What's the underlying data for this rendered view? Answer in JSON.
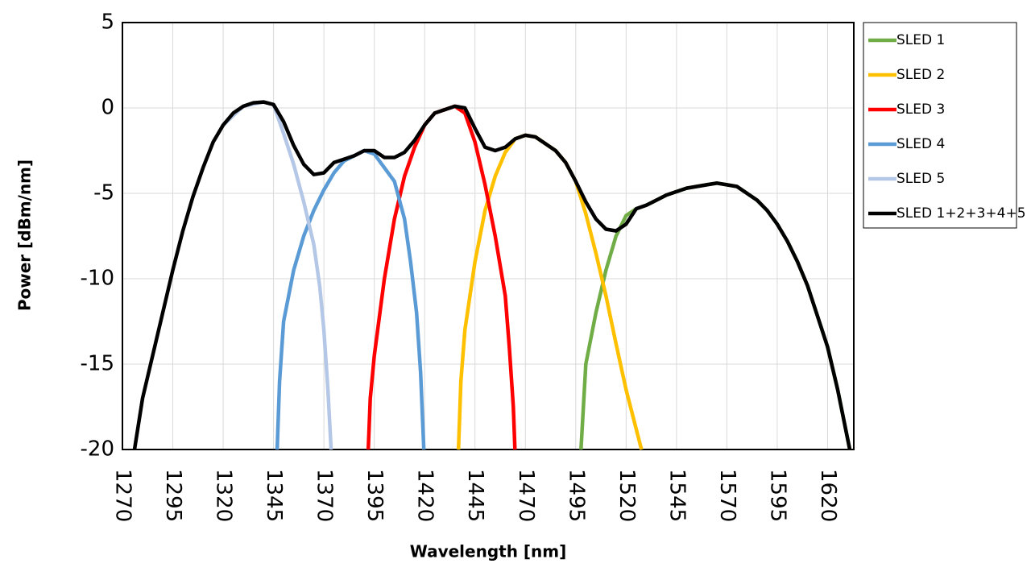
{
  "chart_data": {
    "type": "line",
    "x_label": "Wavelength [nm]",
    "y_label": "Power [dBm/nm]",
    "xlim": [
      1270,
      1633
    ],
    "ylim": [
      -20,
      5
    ],
    "xticks": [
      1270,
      1295,
      1320,
      1345,
      1370,
      1395,
      1420,
      1445,
      1470,
      1495,
      1520,
      1545,
      1570,
      1595,
      1620
    ],
    "yticks": [
      5,
      0,
      -5,
      -10,
      -15,
      -20
    ],
    "grid": true,
    "legend": "right",
    "series": [
      {
        "name": "SLED 1",
        "color": "#70ad47",
        "x": [
          1497.6,
          1500,
          1505,
          1510,
          1515,
          1520,
          1525,
          1530,
          1535,
          1540,
          1545,
          1550,
          1555,
          1560,
          1565,
          1570,
          1575,
          1580,
          1585,
          1590,
          1595,
          1600,
          1605,
          1610,
          1615,
          1620,
          1625,
          1631
        ],
        "values": [
          -20,
          -15,
          -12,
          -9.5,
          -7.5,
          -6.3,
          -5.9,
          -5.7,
          -5.4,
          -5.1,
          -4.9,
          -4.7,
          -4.6,
          -4.5,
          -4.4,
          -4.5,
          -4.6,
          -5.0,
          -5.4,
          -6.0,
          -6.8,
          -7.8,
          -9.0,
          -10.4,
          -12.2,
          -14.0,
          -16.5,
          -20
        ]
      },
      {
        "name": "SLED 2",
        "color": "#ffc000",
        "x": [
          1436.8,
          1438,
          1440,
          1445,
          1450,
          1455,
          1460,
          1465,
          1470,
          1475,
          1480,
          1485,
          1490,
          1495,
          1500,
          1505,
          1510,
          1515,
          1520,
          1527.6
        ],
        "values": [
          -20,
          -16,
          -13,
          -9,
          -6,
          -4,
          -2.6,
          -1.8,
          -1.6,
          -1.7,
          -2.1,
          -2.5,
          -3.2,
          -4.3,
          -6.2,
          -8.5,
          -11,
          -13.8,
          -16.5,
          -20
        ]
      },
      {
        "name": "SLED 3",
        "color": "#ff0000",
        "x": [
          1392,
          1393,
          1395,
          1400,
          1405,
          1410,
          1415,
          1420,
          1425,
          1430,
          1435,
          1440,
          1445,
          1450,
          1455,
          1460,
          1462,
          1464,
          1464.8
        ],
        "values": [
          -20,
          -17,
          -14.5,
          -10,
          -6.5,
          -4,
          -2.3,
          -1,
          -0.3,
          -0.1,
          0.1,
          -0.3,
          -2,
          -4.5,
          -7.5,
          -11,
          -14,
          -17.5,
          -20
        ]
      },
      {
        "name": "SLED 4",
        "color": "#5b9bd5",
        "x": [
          1346.8,
          1348,
          1350,
          1355,
          1360,
          1365,
          1370,
          1375,
          1380,
          1385,
          1390,
          1395,
          1400,
          1405,
          1410,
          1413,
          1416,
          1418,
          1419.6
        ],
        "values": [
          -20,
          -16,
          -12.5,
          -9.5,
          -7.5,
          -6,
          -4.8,
          -3.8,
          -3.1,
          -2.8,
          -2.5,
          -2.7,
          -3.5,
          -4.3,
          -6.5,
          -9,
          -12,
          -15.5,
          -20
        ]
      },
      {
        "name": "SLED 5",
        "color": "#b4c7e7",
        "x": [
          1320,
          1330,
          1340,
          1345,
          1350,
          1355,
          1360,
          1365,
          1368,
          1370,
          1372,
          1373.6
        ],
        "values": [
          -1,
          0.1,
          0.35,
          0.2,
          -1.5,
          -3.3,
          -5.5,
          -8,
          -10.5,
          -13,
          -16.5,
          -20
        ]
      },
      {
        "name": "SLED 1+2+3+4+5",
        "color": "#000000",
        "x": [
          1276,
          1280,
          1285,
          1290,
          1295,
          1300,
          1305,
          1310,
          1315,
          1320,
          1325,
          1330,
          1335,
          1340,
          1345,
          1350,
          1355,
          1360,
          1365,
          1370,
          1375,
          1380,
          1385,
          1390,
          1395,
          1400,
          1405,
          1410,
          1415,
          1420,
          1425,
          1430,
          1435,
          1440,
          1445,
          1450,
          1455,
          1460,
          1465,
          1470,
          1475,
          1480,
          1485,
          1490,
          1495,
          1500,
          1505,
          1510,
          1515,
          1520,
          1525,
          1530,
          1535,
          1540,
          1545,
          1550,
          1555,
          1560,
          1565,
          1570,
          1575,
          1580,
          1585,
          1590,
          1595,
          1600,
          1605,
          1610,
          1615,
          1620,
          1625,
          1631
        ],
        "values": [
          -20,
          -17,
          -14.5,
          -12,
          -9.5,
          -7.2,
          -5.2,
          -3.5,
          -2.0,
          -1.0,
          -0.3,
          0.1,
          0.3,
          0.35,
          0.2,
          -0.8,
          -2.2,
          -3.3,
          -3.9,
          -3.8,
          -3.2,
          -3.0,
          -2.8,
          -2.5,
          -2.5,
          -2.9,
          -2.9,
          -2.6,
          -1.9,
          -1.0,
          -0.3,
          -0.1,
          0.1,
          0.0,
          -1.2,
          -2.3,
          -2.5,
          -2.3,
          -1.8,
          -1.6,
          -1.7,
          -2.1,
          -2.5,
          -3.2,
          -4.3,
          -5.5,
          -6.5,
          -7.1,
          -7.2,
          -6.8,
          -5.9,
          -5.7,
          -5.4,
          -5.1,
          -4.9,
          -4.7,
          -4.6,
          -4.5,
          -4.4,
          -4.5,
          -4.6,
          -5.0,
          -5.4,
          -6.0,
          -6.8,
          -7.8,
          -9.0,
          -10.4,
          -12.2,
          -14.0,
          -16.5,
          -20
        ]
      }
    ]
  }
}
